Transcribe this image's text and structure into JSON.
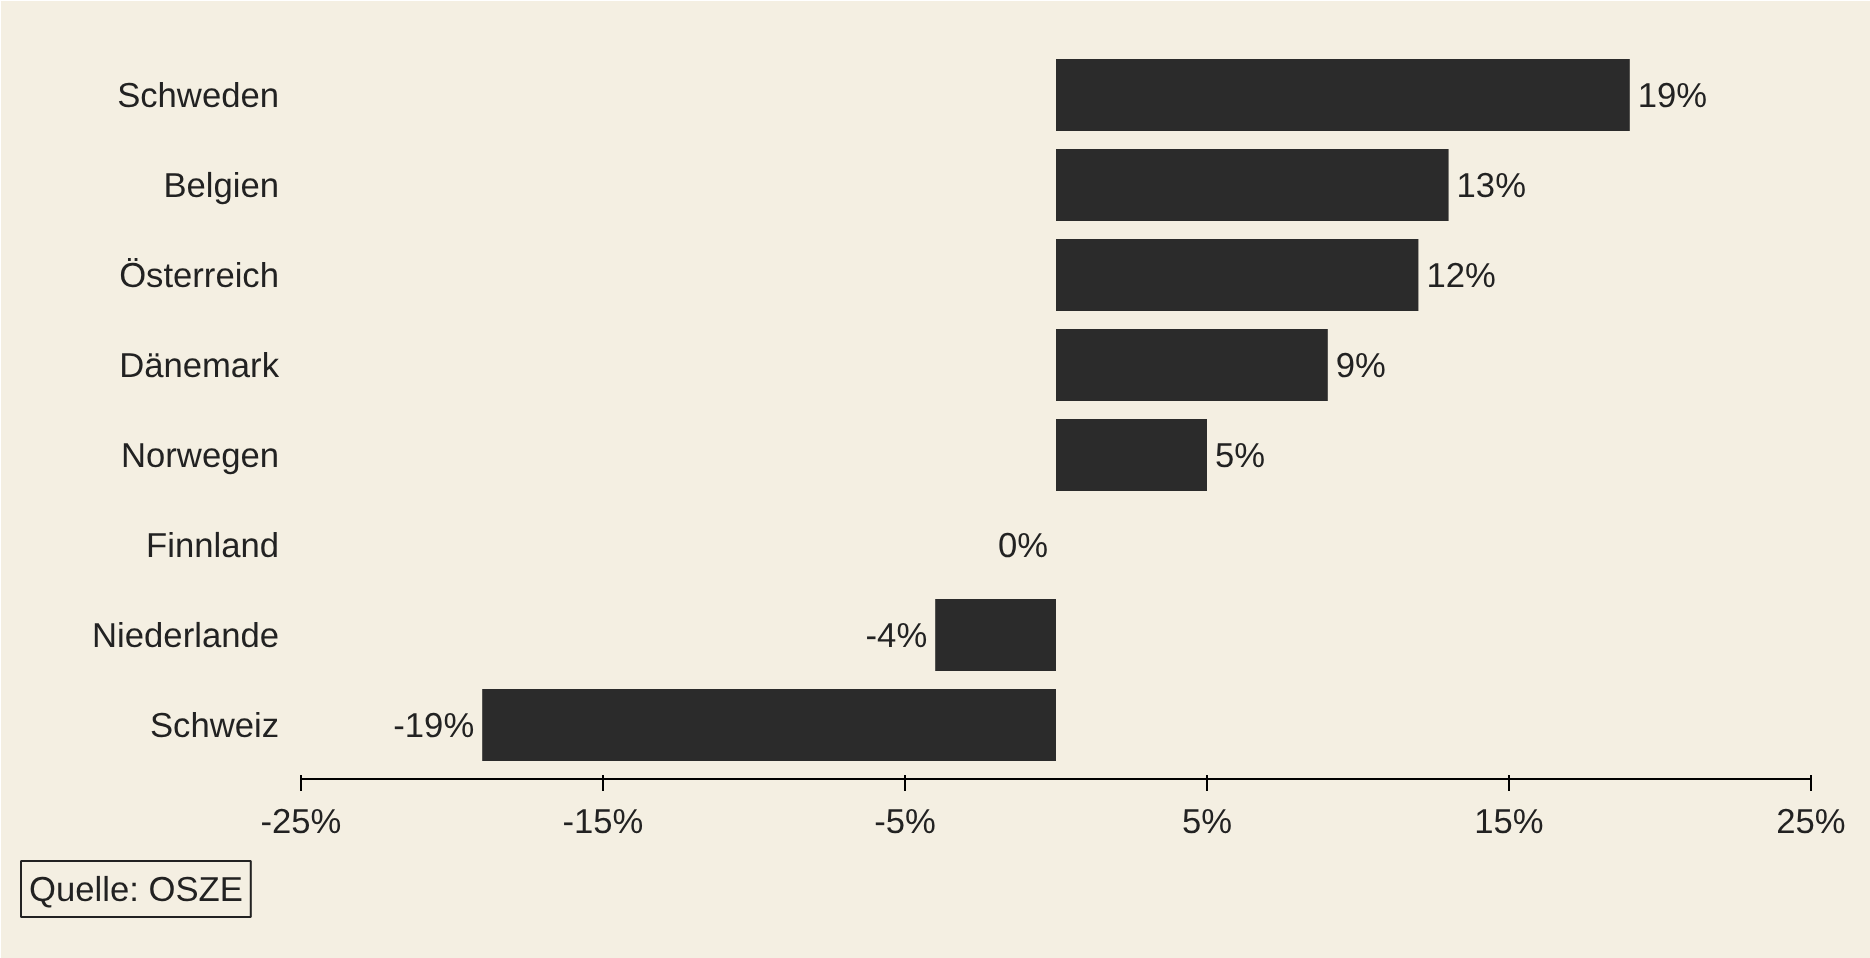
{
  "chart_data": {
    "type": "bar",
    "orientation": "horizontal",
    "categories": [
      "Schweden",
      "Belgien",
      "Österreich",
      "Dänemark",
      "Norwegen",
      "Finnland",
      "Niederlande",
      "Schweiz"
    ],
    "values": [
      19,
      13,
      12,
      9,
      5,
      0,
      -4,
      -19
    ],
    "value_labels": [
      "19%",
      "13%",
      "12%",
      "9%",
      "5%",
      "0%",
      "-4%",
      "-19%"
    ],
    "color": "#2b2b2b",
    "xlim": [
      -25,
      25
    ],
    "xticks": [
      {
        "value": -25,
        "label": "-25%"
      },
      {
        "value": -15,
        "label": "-15%"
      },
      {
        "value": -5,
        "label": "-5%"
      },
      {
        "value": 5,
        "label": "5%"
      },
      {
        "value": 15,
        "label": "15%"
      },
      {
        "value": 25,
        "label": "25%"
      }
    ],
    "grid": false,
    "annotations": [
      "Quelle: OSZE"
    ]
  }
}
